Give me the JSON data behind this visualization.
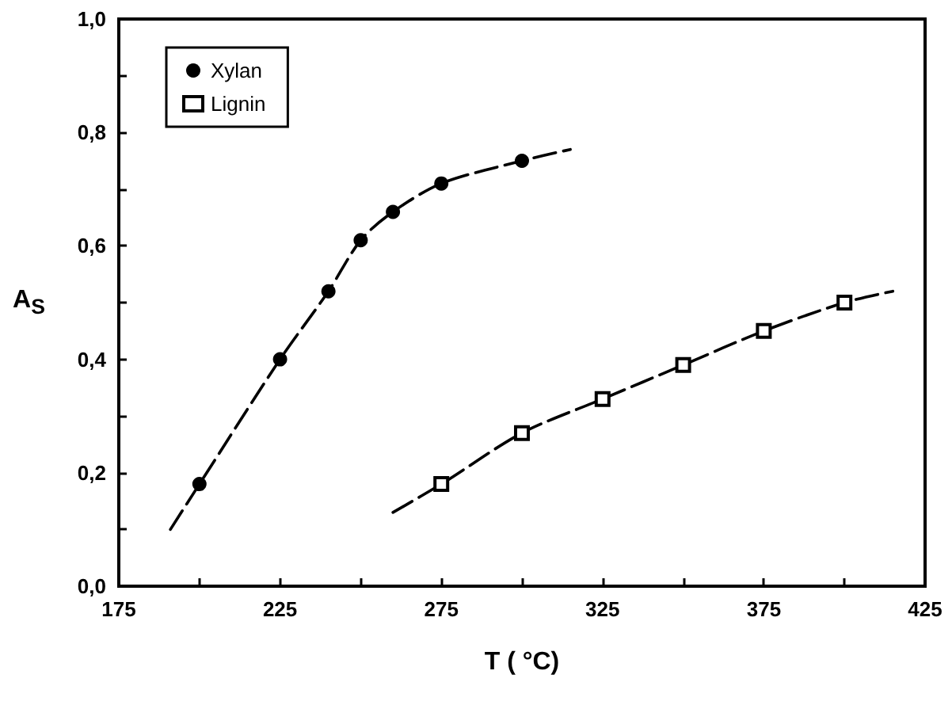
{
  "chart_data": {
    "type": "scatter",
    "xlabel": "T ( °C)",
    "ylabel": "A$_{S}$",
    "series": [
      {
        "name": "Xylan",
        "color": "#000000",
        "marker": "circle",
        "x": [
          200,
          225,
          240,
          250,
          260,
          275,
          300
        ],
        "values": [
          0.18,
          0.4,
          0.52,
          0.61,
          0.66,
          0.71,
          0.75
        ]
      },
      {
        "name": "Lignin",
        "color": "#000000",
        "marker": "square",
        "x": [
          275,
          300,
          325,
          350,
          375,
          400
        ],
        "values": [
          0.18,
          0.27,
          0.33,
          0.39,
          0.45,
          0.5
        ]
      },
      {
        "type": "line",
        "color": "#000000",
        "line_style": "dashed",
        "x": [
          191,
          200,
          225,
          240,
          250,
          260,
          275,
          300,
          315
        ],
        "values": [
          0.1,
          0.18,
          0.4,
          0.52,
          0.61,
          0.66,
          0.71,
          0.75,
          0.77
        ]
      },
      {
        "type": "line",
        "color": "#000000",
        "line_style": "dashed",
        "x": [
          260,
          275,
          300,
          325,
          350,
          375,
          400,
          415
        ],
        "values": [
          0.13,
          0.18,
          0.27,
          0.33,
          0.39,
          0.45,
          0.5,
          0.52
        ]
      }
    ],
    "xlim": [
      175,
      425
    ],
    "xticks": [
      175,
      {
        "value": 200,
        "label": null
      },
      225,
      {
        "value": 250,
        "label": null
      },
      275,
      {
        "value": 300,
        "label": null
      },
      325,
      {
        "value": 350,
        "label": null
      },
      375,
      {
        "value": 400,
        "label": null
      },
      425
    ],
    "ylim": [
      0,
      1
    ],
    "yticks": [
      {
        "value": 0,
        "label": "0,0"
      },
      {
        "value": 0.1,
        "label": null
      },
      {
        "value": 0.2,
        "label": "0,2"
      },
      {
        "value": 0.3,
        "label": null
      },
      {
        "value": 0.4,
        "label": "0,4"
      },
      {
        "value": 0.5,
        "label": null
      },
      {
        "value": 0.6,
        "label": "0,6"
      },
      {
        "value": 0.7,
        "label": null
      },
      {
        "value": 0.8,
        "label": "0,8"
      },
      {
        "value": 0.9,
        "label": null
      },
      {
        "value": 1,
        "label": "1,0"
      }
    ],
    "grid": false,
    "legend": "top left"
  }
}
